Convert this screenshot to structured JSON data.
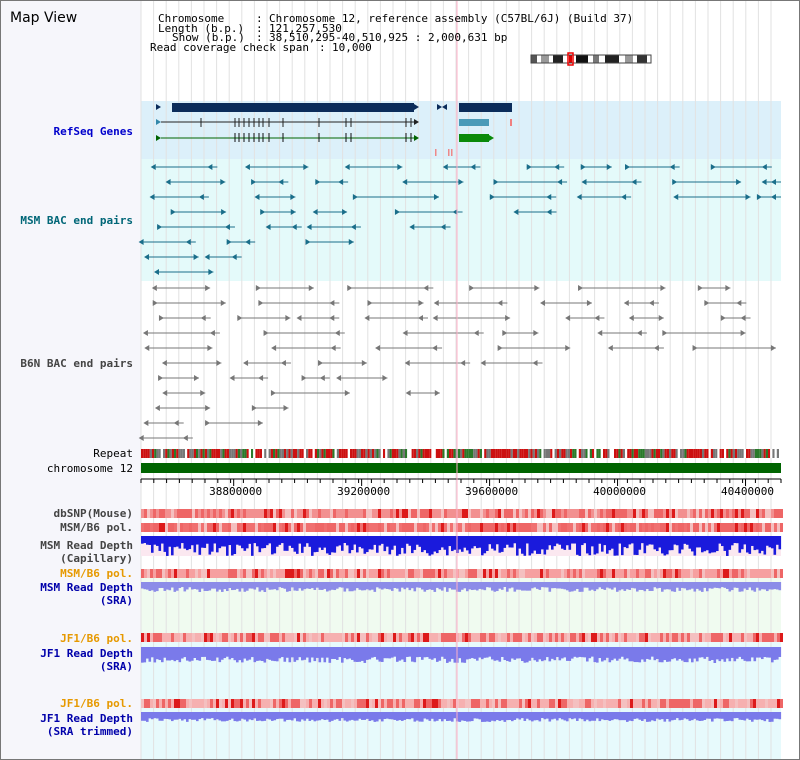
{
  "title": "Map View",
  "info": {
    "chromosome_key": "Chromosome",
    "chromosome_val": "Chromosome 12, reference assembly (C57BL/6J) (Build 37)",
    "length_key": "Length (b.p.)",
    "length_val": "121,257,530",
    "show_key": "Show (b.p.)",
    "show_val": "38,510,295-40,510,925 : 2,000,631 bp",
    "span_key": "Read coverage check span",
    "span_val": "10,000"
  },
  "tracks": {
    "refseq": "RefSeq Genes",
    "msm_bac": "MSM BAC end pairs",
    "b6n_bac": "B6N BAC end pairs",
    "repeat": "Repeat",
    "chromosome": "chromosome 12",
    "dbsnp": "dbSNP(Mouse)",
    "msm_pol": "MSM/B6 pol.",
    "msm_depth_cap_1": "MSM Read Depth",
    "msm_depth_cap_2": "(Capillary)",
    "msm_pol_2": "MSM/B6 pol.",
    "msm_depth_sra_1": "MSM Read Depth",
    "msm_depth_sra_2": "(SRA)",
    "jf1_pol": "JF1/B6 pol.",
    "jf1_depth_sra_1": "JF1 Read Depth",
    "jf1_depth_sra_2": "(SRA)",
    "jf1_pol_2": "JF1/B6 pol.",
    "jf1_depth_trim_1": "JF1 Read Depth",
    "jf1_depth_trim_2": "(SRA trimmed)"
  },
  "axis": {
    "ticks": [
      "38800000",
      "39200000",
      "39600000",
      "40000000",
      "40400000"
    ],
    "tick_values": [
      38800000,
      39200000,
      39600000,
      40000000,
      40400000
    ],
    "range": [
      38510295,
      40510925
    ]
  },
  "colors": {
    "refseq_label": "#0000cc",
    "msm_label": "#006677",
    "b6n_label": "#444444",
    "orange_label": "#e69900",
    "blue_label": "#0000aa",
    "refseq_bg": "#dcf0fa",
    "msm_bg": "#e4fafa",
    "chromosome_bar": "#006400"
  }
}
